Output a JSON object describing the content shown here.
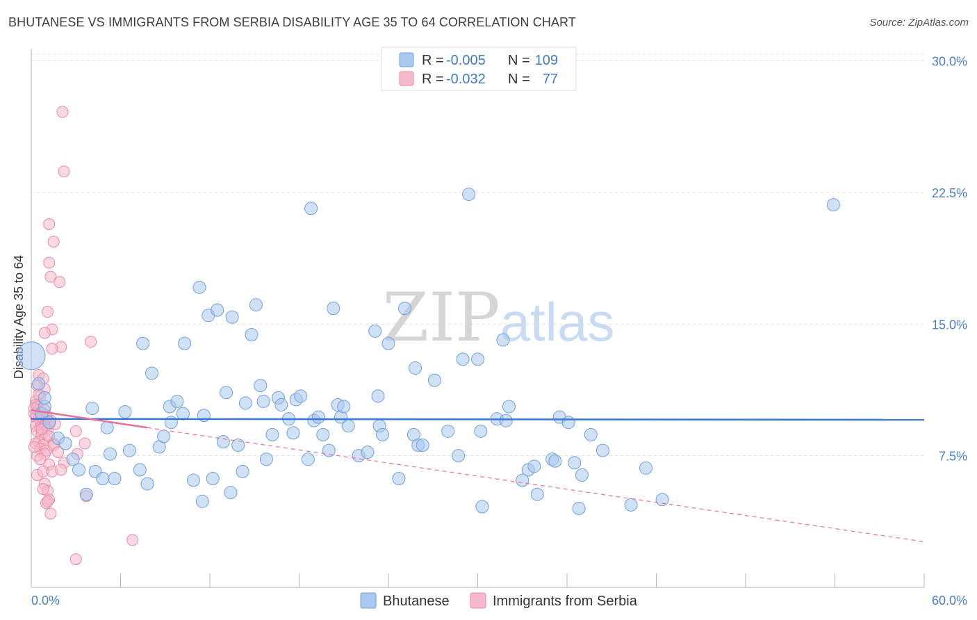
{
  "title": "BHUTANESE VS IMMIGRANTS FROM SERBIA DISABILITY AGE 35 TO 64 CORRELATION CHART",
  "source": "Source: ZipAtlas.com",
  "watermark": {
    "zip": "ZIP",
    "atlas": "atlas"
  },
  "colors": {
    "blue_fill": "#a9c8ef",
    "blue_stroke": "#6f9fdc",
    "blue_line": "#3478d4",
    "pink_fill": "#f6b8cb",
    "pink_stroke": "#e98aa9",
    "pink_line": "#e8709a",
    "grid": "#dddddd",
    "value_text": "#3f7ac9"
  },
  "stats_legend": [
    {
      "r_label": "R =",
      "r_value": "-0.005",
      "n_label": "N =",
      "n_value": "109"
    },
    {
      "r_label": "R =",
      "r_value": "-0.032",
      "n_label": "N =",
      "n_value": "77"
    }
  ],
  "chart_data": {
    "type": "scatter",
    "title": "BHUTANESE VS IMMIGRANTS FROM SERBIA DISABILITY AGE 35 TO 64 CORRELATION CHART",
    "xlabel": "",
    "ylabel": "Disability Age 35 to 64",
    "xlim": [
      0,
      60
    ],
    "ylim": [
      0,
      30.7
    ],
    "x_tick_labels": [
      "0.0%",
      "60.0%"
    ],
    "y_ticks": [
      7.5,
      15.0,
      22.5,
      30.0
    ],
    "y_tick_labels": [
      "7.5%",
      "15.0%",
      "22.5%",
      "30.0%"
    ],
    "legend": [
      "Bhutanese",
      "Immigrants from Serbia"
    ],
    "series": [
      {
        "name": "Bhutanese",
        "color": "blue",
        "trend": {
          "x": [
            0,
            60
          ],
          "y": [
            9.6,
            9.55
          ],
          "style": "solid"
        },
        "points": [
          [
            0.0,
            13.2
          ],
          [
            0.7,
            9.9
          ],
          [
            0.9,
            10.3
          ],
          [
            0.9,
            10.8
          ],
          [
            0.5,
            11.6
          ],
          [
            1.2,
            9.4
          ],
          [
            1.8,
            8.5
          ],
          [
            2.3,
            8.2
          ],
          [
            2.8,
            7.3
          ],
          [
            3.2,
            6.7
          ],
          [
            3.7,
            5.3
          ],
          [
            4.1,
            10.2
          ],
          [
            4.3,
            6.6
          ],
          [
            4.8,
            6.2
          ],
          [
            5.1,
            9.1
          ],
          [
            5.6,
            6.2
          ],
          [
            5.3,
            7.6
          ],
          [
            6.3,
            10.0
          ],
          [
            6.6,
            7.8
          ],
          [
            7.3,
            6.7
          ],
          [
            7.5,
            13.9
          ],
          [
            7.8,
            5.9
          ],
          [
            8.1,
            12.2
          ],
          [
            8.6,
            8.0
          ],
          [
            8.9,
            8.6
          ],
          [
            9.3,
            10.3
          ],
          [
            9.4,
            9.4
          ],
          [
            9.8,
            10.6
          ],
          [
            10.2,
            9.9
          ],
          [
            10.3,
            13.9
          ],
          [
            10.9,
            6.1
          ],
          [
            11.3,
            17.1
          ],
          [
            11.5,
            4.9
          ],
          [
            11.6,
            9.8
          ],
          [
            11.9,
            15.5
          ],
          [
            12.2,
            6.2
          ],
          [
            12.5,
            15.8
          ],
          [
            12.9,
            8.3
          ],
          [
            13.1,
            11.1
          ],
          [
            13.4,
            5.4
          ],
          [
            13.5,
            15.4
          ],
          [
            13.9,
            8.1
          ],
          [
            14.2,
            6.6
          ],
          [
            14.4,
            10.5
          ],
          [
            14.8,
            14.4
          ],
          [
            15.1,
            16.1
          ],
          [
            15.4,
            11.5
          ],
          [
            15.6,
            10.6
          ],
          [
            15.8,
            7.3
          ],
          [
            16.2,
            8.7
          ],
          [
            16.6,
            10.8
          ],
          [
            16.8,
            10.4
          ],
          [
            17.3,
            9.6
          ],
          [
            17.6,
            8.8
          ],
          [
            17.8,
            10.7
          ],
          [
            18.1,
            10.9
          ],
          [
            18.6,
            7.3
          ],
          [
            18.8,
            21.6
          ],
          [
            19.0,
            9.5
          ],
          [
            19.3,
            9.7
          ],
          [
            19.6,
            8.7
          ],
          [
            20.0,
            7.8
          ],
          [
            20.3,
            15.9
          ],
          [
            20.6,
            10.4
          ],
          [
            20.8,
            9.7
          ],
          [
            21.0,
            10.3
          ],
          [
            21.3,
            9.2
          ],
          [
            22.0,
            7.5
          ],
          [
            22.6,
            7.7
          ],
          [
            23.3,
            10.9
          ],
          [
            23.4,
            9.2
          ],
          [
            23.6,
            8.7
          ],
          [
            24.0,
            13.9
          ],
          [
            24.7,
            6.2
          ],
          [
            25.1,
            15.9
          ],
          [
            25.7,
            8.7
          ],
          [
            25.8,
            12.5
          ],
          [
            26.0,
            8.1
          ],
          [
            26.3,
            8.1
          ],
          [
            27.1,
            11.8
          ],
          [
            28.0,
            8.9
          ],
          [
            28.7,
            7.5
          ],
          [
            29.0,
            13.0
          ],
          [
            29.4,
            22.4
          ],
          [
            30.0,
            13.0
          ],
          [
            30.2,
            8.9
          ],
          [
            30.3,
            4.6
          ],
          [
            31.3,
            9.6
          ],
          [
            31.7,
            14.1
          ],
          [
            31.9,
            9.5
          ],
          [
            32.1,
            10.3
          ],
          [
            33.0,
            6.1
          ],
          [
            33.4,
            6.7
          ],
          [
            33.8,
            6.9
          ],
          [
            34.0,
            5.3
          ],
          [
            35.0,
            7.3
          ],
          [
            35.2,
            7.2
          ],
          [
            35.5,
            9.7
          ],
          [
            36.1,
            9.4
          ],
          [
            36.5,
            7.1
          ],
          [
            36.8,
            4.5
          ],
          [
            37.0,
            6.4
          ],
          [
            37.6,
            8.7
          ],
          [
            38.4,
            7.8
          ],
          [
            40.3,
            4.7
          ],
          [
            41.3,
            6.8
          ],
          [
            42.4,
            5.0
          ],
          [
            53.9,
            21.8
          ],
          [
            23.1,
            14.6
          ]
        ]
      },
      {
        "name": "Immigrants from Serbia",
        "color": "pink",
        "trend": {
          "x": [
            0,
            7.8
          ],
          "y": [
            10.1,
            9.1
          ],
          "style": "solid",
          "extended": {
            "x": [
              7.8,
              60
            ],
            "y": [
              9.1,
              2.6
            ],
            "style": "dashed"
          }
        },
        "points": [
          [
            2.1,
            27.1
          ],
          [
            2.2,
            23.7
          ],
          [
            1.2,
            20.7
          ],
          [
            1.5,
            19.7
          ],
          [
            1.2,
            18.5
          ],
          [
            1.3,
            17.7
          ],
          [
            1.9,
            17.4
          ],
          [
            1.1,
            15.7
          ],
          [
            1.4,
            14.7
          ],
          [
            0.9,
            14.5
          ],
          [
            2.0,
            13.7
          ],
          [
            1.4,
            13.6
          ],
          [
            4.0,
            14.0
          ],
          [
            0.5,
            12.1
          ],
          [
            0.8,
            11.9
          ],
          [
            0.4,
            11.5
          ],
          [
            0.9,
            11.3
          ],
          [
            0.6,
            10.9
          ],
          [
            0.3,
            10.6
          ],
          [
            0.3,
            10.4
          ],
          [
            0.4,
            10.3
          ],
          [
            0.5,
            10.1
          ],
          [
            0.6,
            10.0
          ],
          [
            0.7,
            9.9
          ],
          [
            0.9,
            10.1
          ],
          [
            1.0,
            9.8
          ],
          [
            0.2,
            9.9
          ],
          [
            0.3,
            9.7
          ],
          [
            0.5,
            9.6
          ],
          [
            0.6,
            9.5
          ],
          [
            0.8,
            9.4
          ],
          [
            1.0,
            9.4
          ],
          [
            1.2,
            9.3
          ],
          [
            1.3,
            9.5
          ],
          [
            0.3,
            9.2
          ],
          [
            0.6,
            9.1
          ],
          [
            0.9,
            9.2
          ],
          [
            1.1,
            9.0
          ],
          [
            0.4,
            8.9
          ],
          [
            0.7,
            8.7
          ],
          [
            0.9,
            8.5
          ],
          [
            1.2,
            8.6
          ],
          [
            0.5,
            8.3
          ],
          [
            0.3,
            8.2
          ],
          [
            0.8,
            8.1
          ],
          [
            1.5,
            8.2
          ],
          [
            0.6,
            7.9
          ],
          [
            1.0,
            7.8
          ],
          [
            0.9,
            7.6
          ],
          [
            0.4,
            7.5
          ],
          [
            0.6,
            7.3
          ],
          [
            1.2,
            7.0
          ],
          [
            2.2,
            7.1
          ],
          [
            3.0,
            8.9
          ],
          [
            3.6,
            8.2
          ],
          [
            3.1,
            7.6
          ],
          [
            0.4,
            6.4
          ],
          [
            0.8,
            6.6
          ],
          [
            1.4,
            6.6
          ],
          [
            2.0,
            6.7
          ],
          [
            0.9,
            5.9
          ],
          [
            1.1,
            5.5
          ],
          [
            0.8,
            5.6
          ],
          [
            1.2,
            5.0
          ],
          [
            1.0,
            4.8
          ],
          [
            1.1,
            4.9
          ],
          [
            1.3,
            4.2
          ],
          [
            3.7,
            5.2
          ],
          [
            6.8,
            2.7
          ],
          [
            3.0,
            1.6
          ],
          [
            1.5,
            8.1
          ],
          [
            0.7,
            9.0
          ],
          [
            1.6,
            9.3
          ],
          [
            0.2,
            10.2
          ],
          [
            0.5,
            11.0
          ],
          [
            0.2,
            8.0
          ],
          [
            1.8,
            7.7
          ]
        ]
      }
    ]
  }
}
